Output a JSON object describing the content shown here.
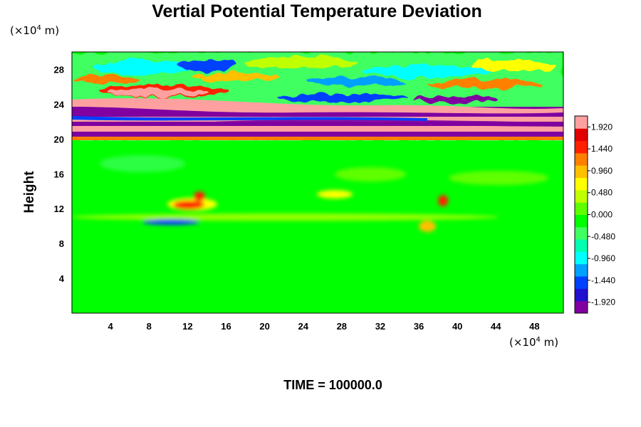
{
  "chart_data": {
    "type": "heatmap",
    "title": "Vertial Potential Temperature Deviation",
    "ylabel": "Height",
    "footer": "TIME = 100000.0",
    "x_unit": {
      "prefix": "(×10",
      "exp": "4",
      "suffix": " m)"
    },
    "y_unit": {
      "prefix": "(×10",
      "exp": "4",
      "suffix": " m)"
    },
    "xlim": [
      0,
      51
    ],
    "ylim": [
      0,
      30
    ],
    "xticks": [
      4,
      8,
      12,
      16,
      20,
      24,
      28,
      32,
      36,
      40,
      44,
      48
    ],
    "yticks": [
      4,
      8,
      12,
      16,
      20,
      24,
      28
    ],
    "colorbar": {
      "range": [
        -2.16,
        2.16
      ],
      "labels": [
        "1.920",
        "1.440",
        "0.960",
        "0.480",
        "0.000",
        "-0.480",
        "-0.960",
        "-1.440",
        "-1.920"
      ],
      "label_values": [
        1.92,
        1.44,
        0.96,
        0.48,
        0.0,
        -0.48,
        -0.96,
        -1.44,
        -1.92
      ],
      "colors": [
        "#8000a0",
        "#2010d0",
        "#0040ff",
        "#00a0ff",
        "#00ffff",
        "#00ffb0",
        "#40ff60",
        "#00ff00",
        "#60ff00",
        "#c0ff00",
        "#ffff00",
        "#ffc000",
        "#ff8000",
        "#ff2000",
        "#e00000",
        "#ffa0a0"
      ]
    }
  }
}
